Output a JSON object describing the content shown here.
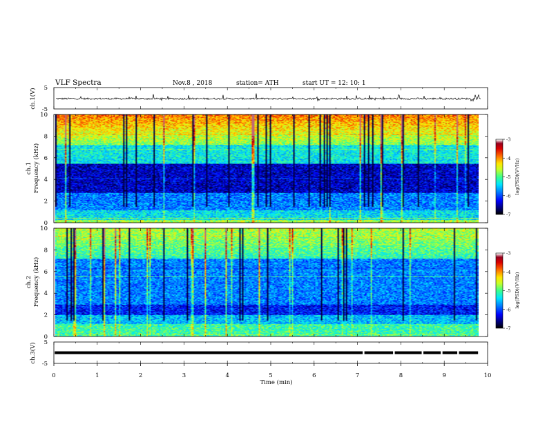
{
  "header": {
    "title": "VLF  Spectra",
    "date": "Nov.8  , 2018",
    "station": "station= ATH",
    "start_ut": "start  UT  =    12: 10: 1"
  },
  "colors": {
    "background": "#ffffff",
    "axis": "#000000",
    "colormap": [
      "#000000",
      "#00007f",
      "#0000ff",
      "#00a0ff",
      "#00ffff",
      "#7fff7f",
      "#ffff00",
      "#ff7f00",
      "#ff0000",
      "#7f0000",
      "#ffffff"
    ]
  },
  "chart_data": [
    {
      "type": "line",
      "name": "ch1-voltage",
      "ylabel": "ch.1(V)",
      "ylim": [
        -5,
        5
      ],
      "yticks": [
        "5",
        "-5"
      ],
      "xlim": [
        0,
        10
      ],
      "baseline_v": -0.2,
      "noise_v": 0.8
    },
    {
      "type": "heatmap",
      "name": "ch1-spectrogram",
      "ylabel": "ch.1\nFrequency  (kHz)",
      "xlim": [
        0,
        9.8
      ],
      "ylim": [
        0,
        10
      ],
      "yticks": [
        "0",
        "2",
        "4",
        "6",
        "8",
        "10"
      ],
      "colorbar": {
        "label": "log(PSD)(V²/Hz)",
        "ticks": [
          "-3",
          "-4",
          "-5",
          "-6",
          "-7"
        ],
        "range": [
          -7,
          -3
        ]
      }
    },
    {
      "type": "heatmap",
      "name": "ch2-spectrogram",
      "ylabel": "ch.2\nFrequency  (kHz)",
      "xlim": [
        0,
        9.8
      ],
      "ylim": [
        0,
        10
      ],
      "yticks": [
        "0",
        "2",
        "4",
        "6",
        "8",
        "10"
      ],
      "colorbar": {
        "label": "log(PSD)(V²/Hz)",
        "ticks": [
          "-3",
          "-4",
          "-5",
          "-6",
          "-7"
        ],
        "range": [
          -7,
          -3
        ]
      }
    },
    {
      "type": "line",
      "name": "ch3-voltage",
      "ylabel": "ch.3(V)",
      "ylim": [
        -5,
        5
      ],
      "yticks": [
        "5",
        "-5"
      ],
      "xlim": [
        0,
        10
      ],
      "level_v": 0,
      "gaps_min": [
        7.12,
        7.82,
        8.48,
        8.92,
        9.3,
        9.78
      ]
    }
  ],
  "xaxis": {
    "label": "Time  (min)",
    "ticks": [
      "0",
      "1",
      "2",
      "3",
      "4",
      "5",
      "6",
      "7",
      "8",
      "9",
      "10"
    ],
    "range": [
      0,
      10
    ]
  }
}
